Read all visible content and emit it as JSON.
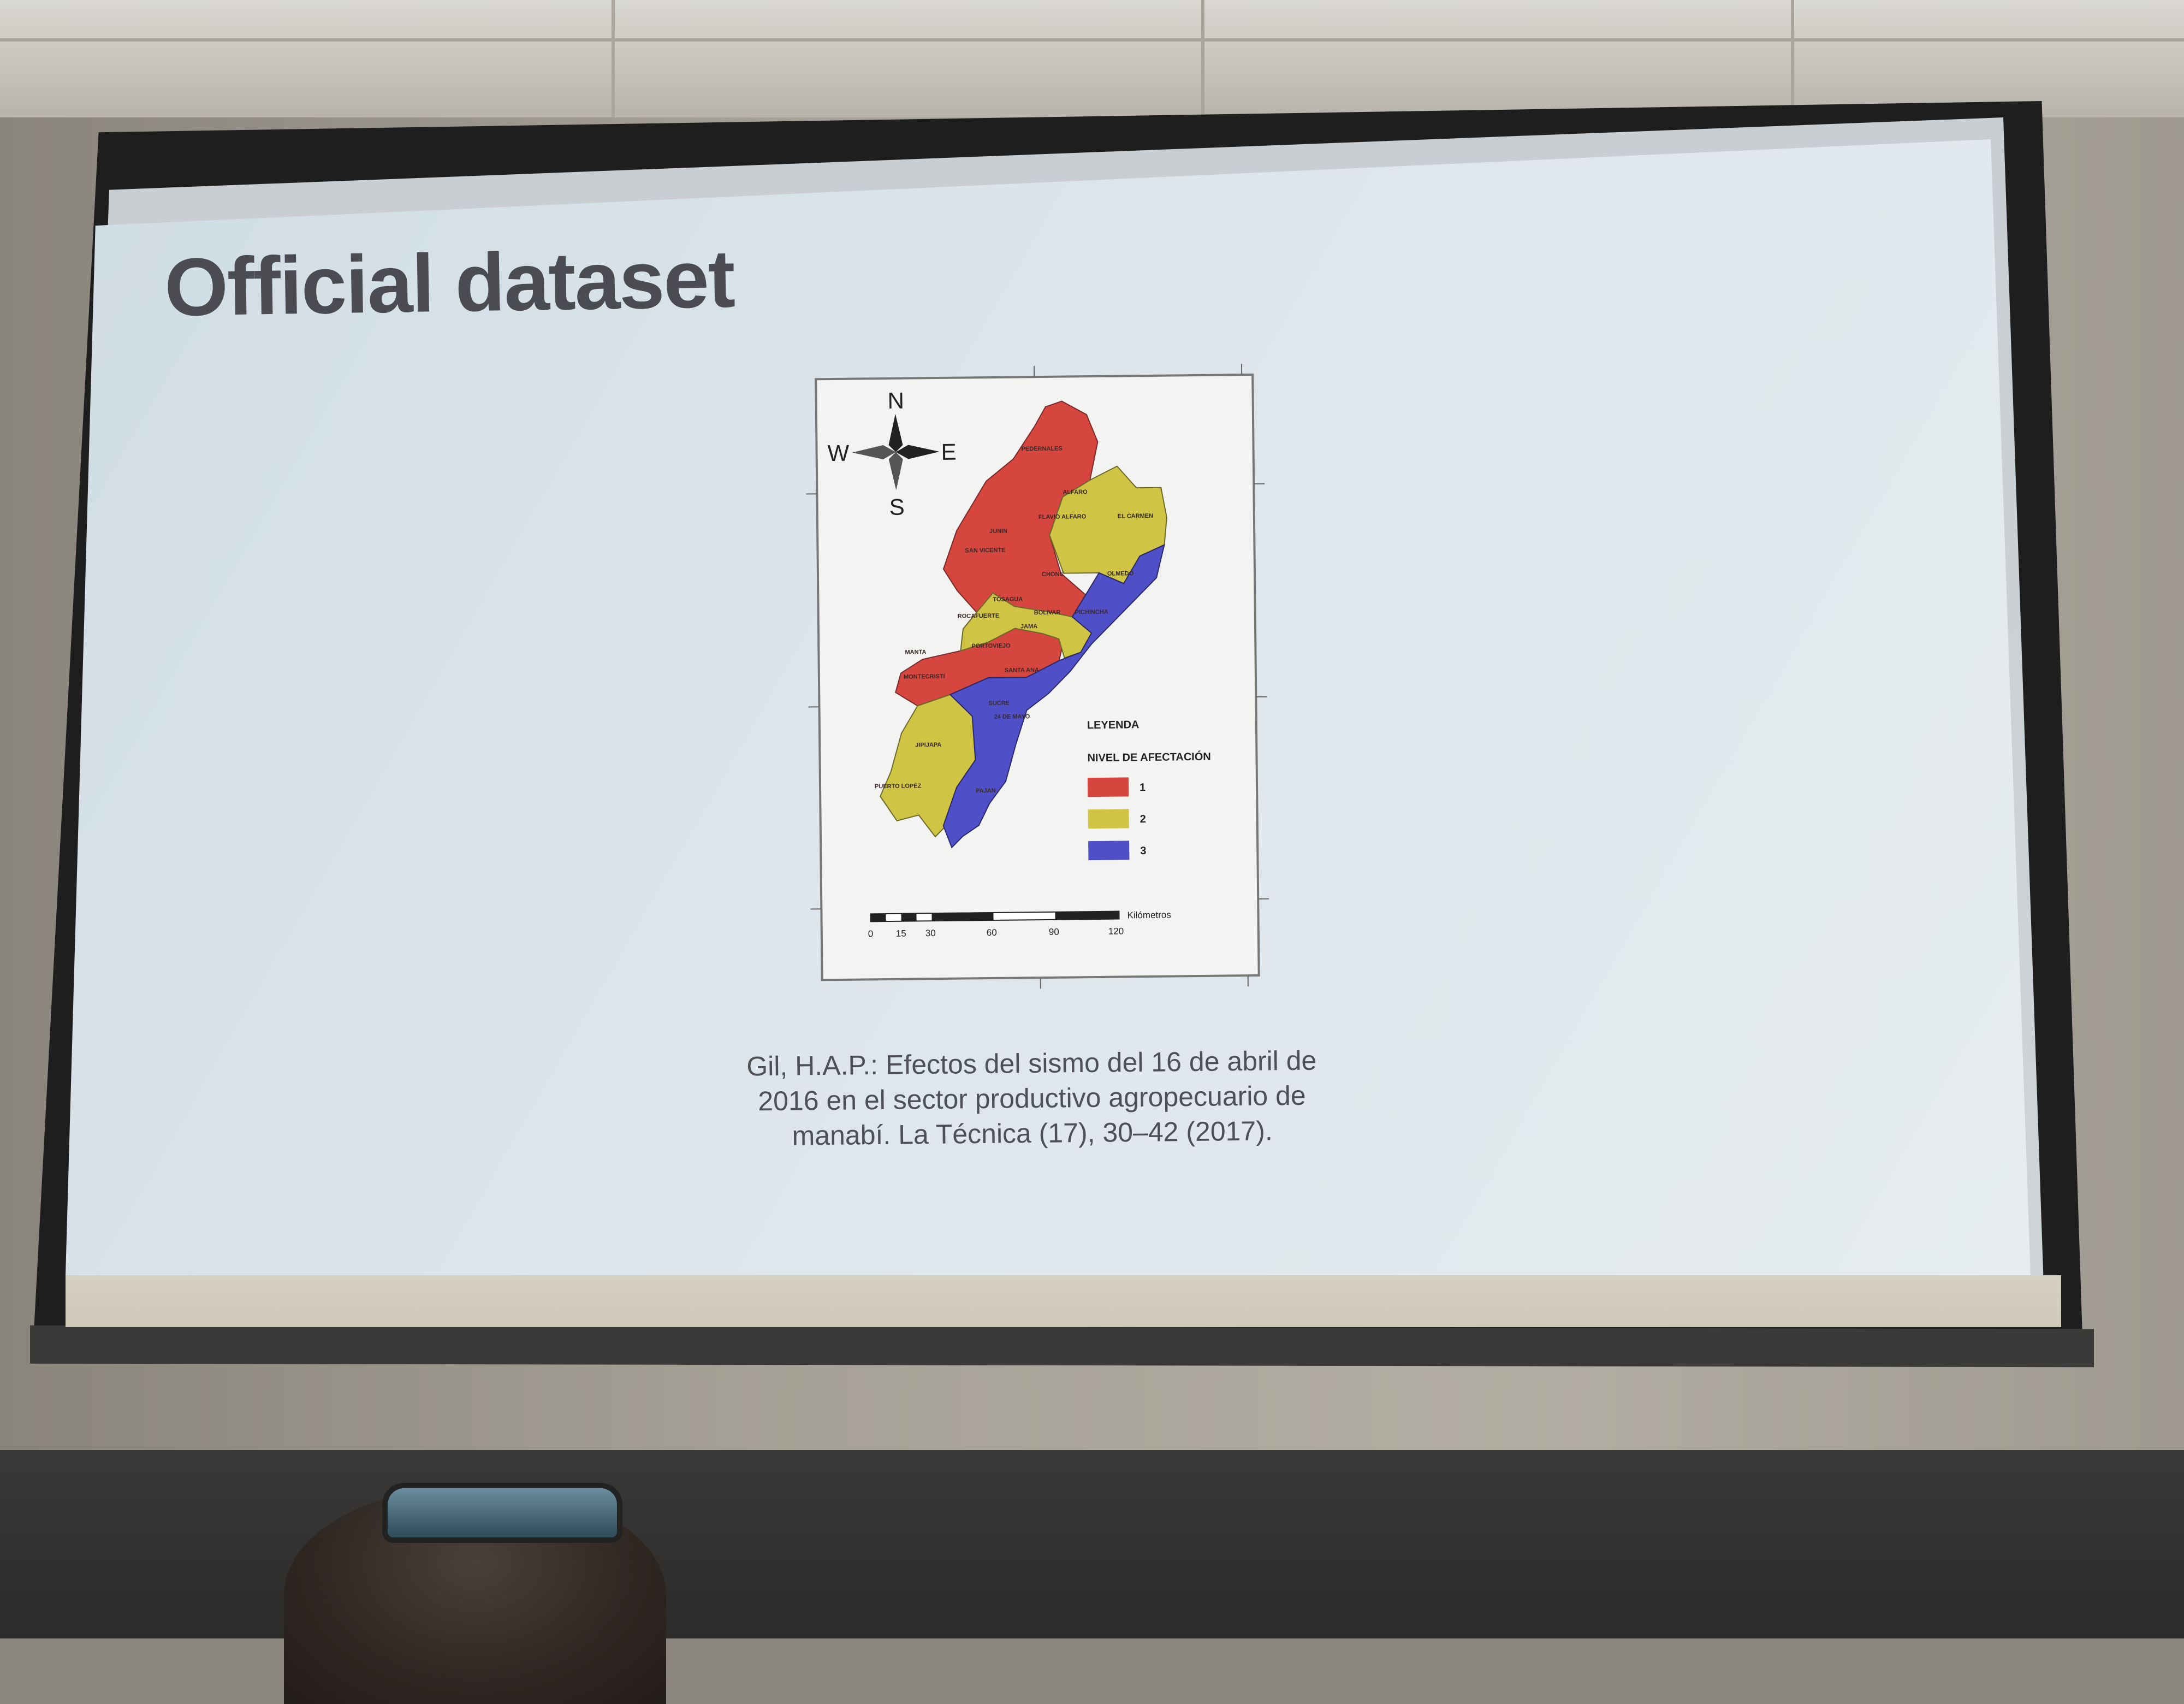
{
  "slide": {
    "title": "Official dataset",
    "citation_lines": [
      "Gil,  H.A.P.:  Efectos del sismo del 16 de abril de",
      "2016 en el sector productivo agropecuario de",
      "manabí. La Técnica (17), 30–42 (2017)."
    ]
  },
  "map": {
    "compass": {
      "north": "N",
      "south": "S",
      "east": "E",
      "west": "W"
    },
    "legend": {
      "title": "LEYENDA",
      "subtitle": "NIVEL DE AFECTACIÓN",
      "items": [
        {
          "label": "1",
          "color": "#d5463e"
        },
        {
          "label": "2",
          "color": "#cfc443"
        },
        {
          "label": "3",
          "color": "#4f4fc8"
        }
      ]
    },
    "scale": {
      "unit": "Kilómetros",
      "ticks": [
        "0",
        "15",
        "30",
        "60",
        "90",
        "120"
      ]
    },
    "region_labels": [
      "TOSAGUA",
      "BOLIVAR",
      "EL CARMEN",
      "ALFARO",
      "JIPIJAPA",
      "PUERTO LOPEZ",
      "PORTOVIEJO",
      "24 DE MAYO",
      "PICHINCHA",
      "PAJAN",
      "ROCAFUERTE",
      "MONTECRISTI",
      "MANTA",
      "SANTA ANA",
      "CHONE",
      "SUCRE",
      "JUNIN",
      "JAMA",
      "PEDERNALES",
      "SAN VICENTE",
      "FLAVIO ALFARO",
      "OLMEDO"
    ]
  }
}
